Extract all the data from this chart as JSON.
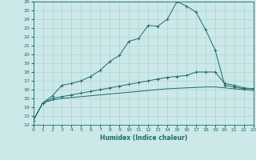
{
  "xlabel": "Humidex (Indice chaleur)",
  "bg_color": "#cce8e8",
  "line_color": "#1e6b6b",
  "grid_color": "#aed4d4",
  "xmin": 0,
  "xmax": 23,
  "ymin": 12,
  "ymax": 26,
  "series": [
    {
      "x": [
        0,
        1,
        2,
        3,
        4,
        5,
        6,
        7,
        8,
        9,
        10,
        11,
        12,
        13,
        14,
        15,
        16,
        17,
        18,
        19,
        20,
        21,
        22,
        23
      ],
      "y": [
        12.5,
        14.5,
        15.3,
        16.5,
        16.7,
        17.0,
        17.5,
        18.2,
        19.2,
        19.9,
        21.5,
        21.8,
        23.3,
        23.2,
        24.0,
        26.0,
        25.5,
        24.8,
        22.8,
        20.5,
        16.5,
        16.3,
        16.1,
        16.1
      ],
      "marker": "+"
    },
    {
      "x": [
        0,
        1,
        2,
        3,
        4,
        5,
        6,
        7,
        8,
        9,
        10,
        11,
        12,
        13,
        14,
        15,
        16,
        17,
        18,
        19,
        20,
        21,
        22,
        23
      ],
      "y": [
        12.5,
        14.5,
        15.0,
        15.2,
        15.4,
        15.6,
        15.8,
        16.0,
        16.2,
        16.4,
        16.6,
        16.8,
        17.0,
        17.2,
        17.4,
        17.5,
        17.6,
        18.0,
        18.0,
        18.0,
        16.7,
        16.5,
        16.2,
        16.1
      ],
      "marker": "+"
    },
    {
      "x": [
        0,
        1,
        2,
        3,
        4,
        5,
        6,
        7,
        8,
        9,
        10,
        11,
        12,
        13,
        14,
        15,
        16,
        17,
        18,
        19,
        20,
        21,
        22,
        23
      ],
      "y": [
        12.5,
        14.5,
        14.8,
        15.0,
        15.1,
        15.2,
        15.3,
        15.4,
        15.5,
        15.6,
        15.7,
        15.8,
        15.9,
        16.0,
        16.1,
        16.15,
        16.2,
        16.25,
        16.3,
        16.3,
        16.2,
        16.1,
        16.0,
        15.9
      ],
      "marker": null
    }
  ]
}
